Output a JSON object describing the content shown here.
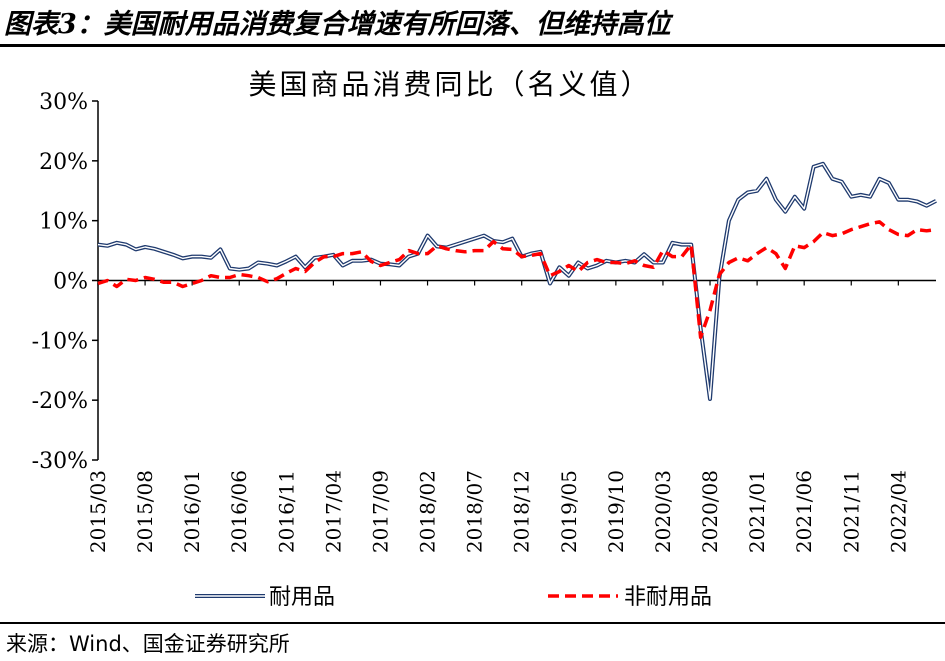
{
  "figure_title": "图表3：美国耐用品消费复合增速有所回落、但维持高位",
  "source": "来源：Wind、国金证券研究所",
  "colors": {
    "durable": "#1f3a6e",
    "nondurable": "#ff0000"
  },
  "chart_data": {
    "type": "line",
    "title": "美国商品消费同比（名义值）",
    "ylim": [
      -30,
      30
    ],
    "yticks": [
      -30,
      -20,
      -10,
      0,
      10,
      20,
      30
    ],
    "ytick_labels": [
      "-30%",
      "-20%",
      "-10%",
      "0%",
      "10%",
      "20%",
      "30%"
    ],
    "x_start": "2015/03",
    "xtick_labels": [
      "2015/03",
      "2015/08",
      "2016/01",
      "2016/06",
      "2016/11",
      "2017/04",
      "2017/09",
      "2018/02",
      "2018/07",
      "2018/12",
      "2019/05",
      "2019/10",
      "2020/03",
      "2020/08",
      "2021/01",
      "2021/06",
      "2021/11",
      "2022/04"
    ],
    "legend": [
      "耐用品",
      "非耐用品"
    ],
    "legend_position": "bottom",
    "series": [
      {
        "name": "耐用品",
        "style": "double-line",
        "values": [
          6.0,
          5.8,
          6.3,
          6.0,
          5.2,
          5.6,
          5.3,
          4.8,
          4.3,
          3.7,
          4.0,
          4.0,
          3.8,
          5.2,
          2.0,
          1.8,
          2.0,
          3.0,
          2.8,
          2.5,
          3.2,
          4.0,
          2.2,
          3.8,
          4.0,
          4.3,
          2.5,
          3.3,
          3.3,
          3.5,
          2.8,
          2.7,
          2.5,
          4.0,
          4.5,
          7.5,
          5.7,
          5.5,
          6.0,
          6.5,
          7.0,
          7.5,
          6.6,
          6.4,
          7.0,
          4.0,
          4.5,
          4.8,
          -0.5,
          2.2,
          0.8,
          3.0,
          2.0,
          2.5,
          3.3,
          3.0,
          3.3,
          3.0,
          4.4,
          3.0,
          3.0,
          6.3,
          6.0,
          6.0,
          -8.0,
          -19.8,
          0.5,
          10.0,
          13.5,
          14.7,
          15.0,
          17.0,
          13.5,
          11.5,
          14.0,
          12.0,
          19.0,
          19.5,
          17.0,
          16.5,
          14.0,
          14.3,
          14.0,
          17.0,
          16.3,
          13.5,
          13.5,
          13.2,
          12.5,
          13.3
        ]
      },
      {
        "name": "非耐用品",
        "style": "dashed",
        "values": [
          -0.5,
          0.0,
          -1.0,
          0.2,
          0.0,
          0.5,
          0.2,
          -0.3,
          -0.3,
          -1.0,
          -0.5,
          0.0,
          0.8,
          0.5,
          0.5,
          1.0,
          0.8,
          0.5,
          -0.2,
          0.3,
          1.2,
          2.0,
          1.5,
          3.0,
          4.0,
          4.0,
          4.5,
          4.5,
          4.8,
          3.2,
          2.5,
          3.0,
          3.5,
          5.0,
          4.5,
          4.5,
          5.8,
          5.3,
          5.0,
          4.8,
          5.0,
          5.0,
          6.5,
          5.3,
          5.2,
          4.0,
          4.2,
          4.5,
          0.8,
          1.5,
          2.5,
          1.5,
          3.0,
          3.5,
          3.0,
          3.0,
          2.8,
          3.3,
          2.5,
          2.2,
          5.0,
          4.0,
          4.0,
          6.0,
          -9.5,
          -5.0,
          1.0,
          3.0,
          3.8,
          3.3,
          4.5,
          5.5,
          4.5,
          2.0,
          5.8,
          5.5,
          6.5,
          8.0,
          7.5,
          7.8,
          8.5,
          9.0,
          9.5,
          9.8,
          8.5,
          7.7,
          7.5,
          8.5,
          8.3,
          8.5
        ]
      }
    ]
  }
}
